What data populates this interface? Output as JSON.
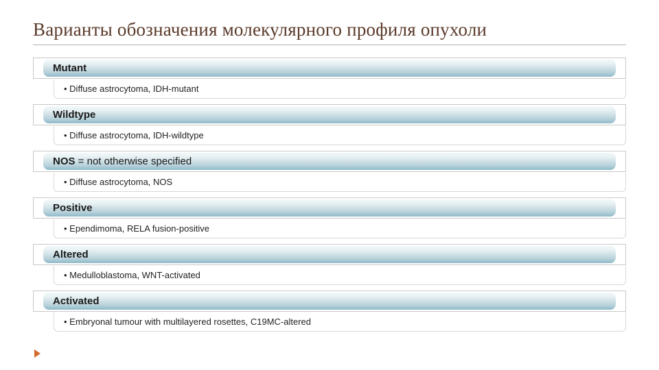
{
  "title": "Варианты обозначения молекулярного профиля опухоли",
  "title_color": "#5a3a2a",
  "title_fontsize": 27,
  "title_underline_color": "#b0b0b0",
  "header_gradient": [
    "#f2f8fa",
    "#e6f0f3",
    "#cfe0e6",
    "#b6d1da",
    "#8fb9c7"
  ],
  "header_fontsize": 15,
  "body_fontsize": 13,
  "border_color": "#c8c8c8",
  "background_color": "#ffffff",
  "marker_color": "#d46a2a",
  "sections": [
    {
      "header": "Mutant",
      "sub": "",
      "bullet": "• Diffuse astrocytoma, IDH-mutant"
    },
    {
      "header": "Wildtype",
      "sub": "",
      "bullet": "• Diffuse astrocytoma, IDH-wildtype"
    },
    {
      "header": "NOS",
      "sub": " = not otherwise specified",
      "bullet": "• Diffuse astrocytoma, NOS"
    },
    {
      "header": "Positive",
      "sub": "",
      "bullet": "• Ependimoma, RELA fusion-positive"
    },
    {
      "header": "Altered",
      "sub": "",
      "bullet": "• Medulloblastoma, WNT-activated"
    },
    {
      "header": "Activated",
      "sub": "",
      "bullet": "• Embryonal tumour with multilayered rosettes, C19MC-altered"
    }
  ]
}
